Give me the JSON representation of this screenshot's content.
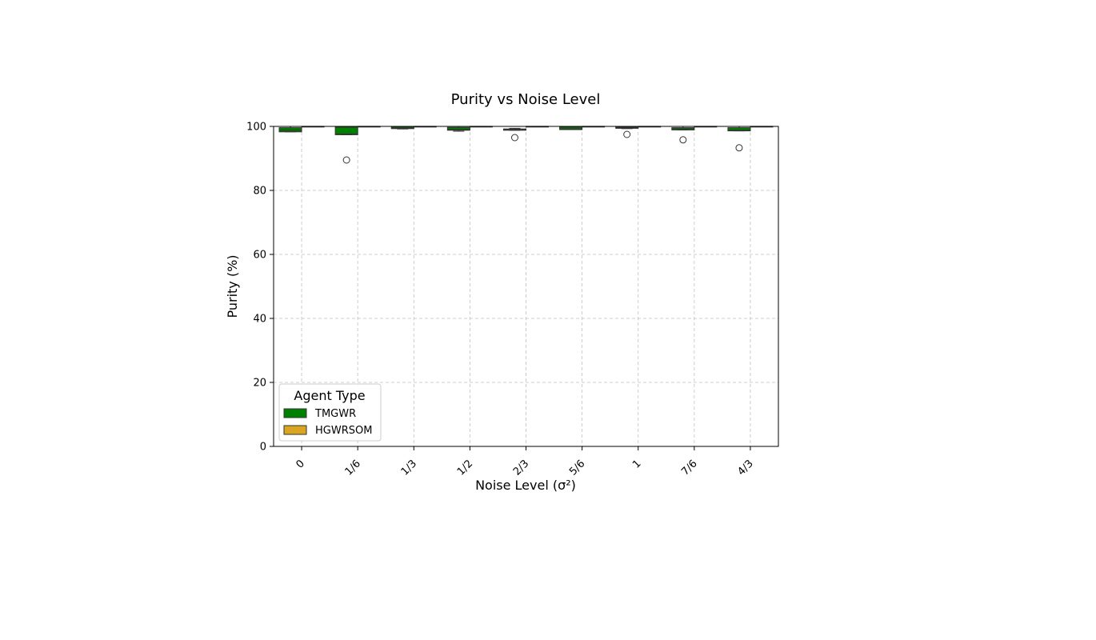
{
  "chart_data": {
    "type": "box",
    "title": "Purity vs Noise Level",
    "xlabel": "Noise Level (σ²)",
    "ylabel": "Purity (%)",
    "ylim": [
      0,
      100
    ],
    "yticks": [
      0,
      20,
      40,
      60,
      80,
      100
    ],
    "grid": true,
    "categories": [
      "0",
      "1/6",
      "1/3",
      "1/2",
      "2/3",
      "5/6",
      "1",
      "7/6",
      "4/3"
    ],
    "legend": {
      "title": "Agent Type",
      "placement": "lower-left"
    },
    "series": [
      {
        "name": "TMGWR",
        "color": "#008000",
        "boxes": [
          {
            "q1": 98.3,
            "median": 98.8,
            "q3": 99.6,
            "low": 98.3,
            "high": 100,
            "outliers": []
          },
          {
            "q1": 97.4,
            "median": 97.6,
            "q3": 99.8,
            "low": 97.4,
            "high": 100,
            "outliers": [
              89.5
            ]
          },
          {
            "q1": 99.3,
            "median": 99.5,
            "q3": 99.9,
            "low": 99.2,
            "high": 100,
            "outliers": []
          },
          {
            "q1": 98.8,
            "median": 99.0,
            "q3": 99.7,
            "low": 98.5,
            "high": 100,
            "outliers": []
          },
          {
            "q1": 98.8,
            "median": 99.0,
            "q3": 99.2,
            "low": 98.8,
            "high": 99.4,
            "outliers": [
              96.5
            ]
          },
          {
            "q1": 99.0,
            "median": 99.2,
            "q3": 99.8,
            "low": 99.0,
            "high": 100,
            "outliers": []
          },
          {
            "q1": 99.4,
            "median": 99.6,
            "q3": 99.9,
            "low": 99.3,
            "high": 100,
            "outliers": [
              97.5
            ]
          },
          {
            "q1": 98.9,
            "median": 99.2,
            "q3": 99.6,
            "low": 98.9,
            "high": 100,
            "outliers": [
              95.8
            ]
          },
          {
            "q1": 98.6,
            "median": 98.8,
            "q3": 99.6,
            "low": 98.6,
            "high": 100,
            "outliers": [
              93.3
            ]
          }
        ]
      },
      {
        "name": "HGWRSOM",
        "color": "#DAA520",
        "boxes": [
          {
            "q1": 100,
            "median": 100,
            "q3": 100,
            "low": 100,
            "high": 100,
            "outliers": []
          },
          {
            "q1": 100,
            "median": 100,
            "q3": 100,
            "low": 100,
            "high": 100,
            "outliers": []
          },
          {
            "q1": 100,
            "median": 100,
            "q3": 100,
            "low": 100,
            "high": 100,
            "outliers": []
          },
          {
            "q1": 100,
            "median": 100,
            "q3": 100,
            "low": 100,
            "high": 100,
            "outliers": []
          },
          {
            "q1": 100,
            "median": 100,
            "q3": 100,
            "low": 100,
            "high": 100,
            "outliers": []
          },
          {
            "q1": 100,
            "median": 100,
            "q3": 100,
            "low": 100,
            "high": 100,
            "outliers": []
          },
          {
            "q1": 100,
            "median": 100,
            "q3": 100,
            "low": 100,
            "high": 100,
            "outliers": []
          },
          {
            "q1": 100,
            "median": 100,
            "q3": 100,
            "low": 100,
            "high": 100,
            "outliers": []
          },
          {
            "q1": 100,
            "median": 100,
            "q3": 100,
            "low": 100,
            "high": 100,
            "outliers": []
          }
        ]
      }
    ]
  }
}
